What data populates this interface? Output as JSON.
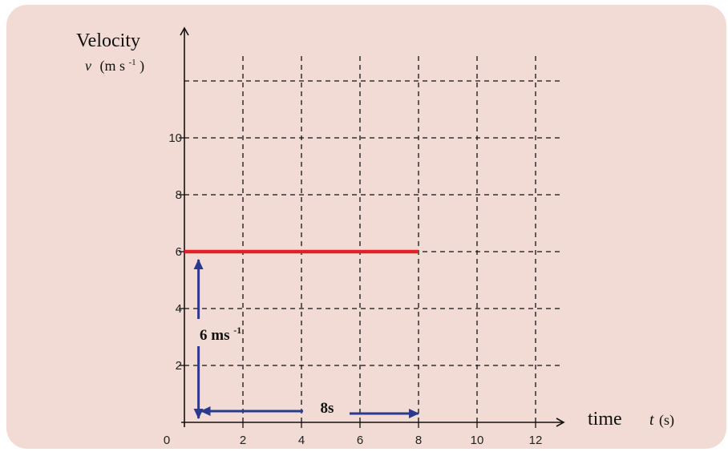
{
  "chart_data": {
    "type": "line",
    "title": "",
    "ylabel": {
      "word": "Velocity",
      "symbol": "v",
      "unit_open": "(m s",
      "unit_exp": "-1",
      "unit_close": ")"
    },
    "xlabel": {
      "word": "time",
      "symbol": "t",
      "unit": "(s)"
    },
    "x_ticks": [
      2,
      4,
      6,
      8,
      10,
      12
    ],
    "y_ticks": [
      2,
      4,
      6,
      8,
      10
    ],
    "origin_label": "0",
    "xlim": [
      0,
      12.5
    ],
    "ylim": [
      0,
      12
    ],
    "grid": true,
    "series": [
      {
        "x": [
          0,
          8
        ],
        "y": [
          6,
          6
        ],
        "color": "#e0202a"
      }
    ],
    "annotations": [
      {
        "text": "6 ms",
        "exp": "-1",
        "from": [
          0.4,
          0
        ],
        "to": [
          0.4,
          6
        ],
        "color": "#2a3a8f"
      },
      {
        "text": "8s",
        "from": [
          0.4,
          0
        ],
        "to": [
          8,
          0
        ],
        "color": "#2a3a8f"
      }
    ]
  }
}
